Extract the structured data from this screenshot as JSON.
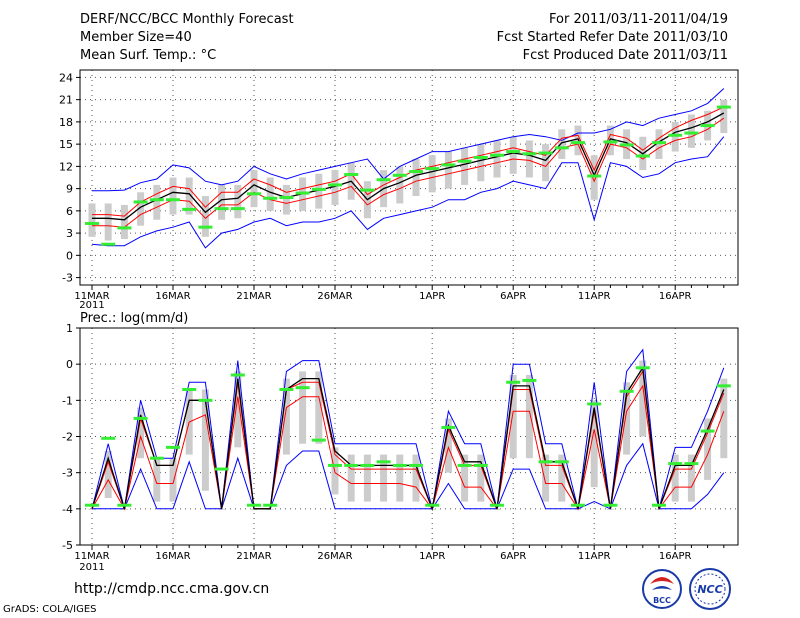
{
  "header": {
    "title": "DERF/NCC/BCC Monthly Forecast",
    "member_size": "Member Size=40",
    "variable": "Mean Surf. Temp.: °C",
    "period": "For 2011/03/11-2011/04/19",
    "fcst_started": "Fcst Started Refer Date 2011/03/10",
    "fcst_produced": "Fcst Produced Date 2011/03/11"
  },
  "footer": {
    "url": "http://cmdp.ncc.cma.gov.cn",
    "grads": "GrADS: COLA/IGES"
  },
  "logos": {
    "bcc": "BCC",
    "ncc": "NCC"
  },
  "colors": {
    "ens_max_min": "#0000ff",
    "ens_mean": "#000000",
    "ens_band": "#ff0000",
    "member_spread": "#cccccc",
    "observed": "#33ee33",
    "grid": "#555555"
  },
  "chart_data": [
    {
      "type": "line",
      "title": "Mean Surf. Temp.: °C",
      "xlabel": "",
      "ylabel": "°C",
      "ylim": [
        -4,
        25
      ],
      "yticks": [
        -3,
        0,
        3,
        6,
        9,
        12,
        15,
        18,
        21,
        24
      ],
      "grid": true,
      "x_tick_labels": [
        "11MAR",
        "16MAR",
        "21MAR",
        "26MAR",
        "1APR",
        "6APR",
        "11APR",
        "16APR"
      ],
      "x_tick_days": [
        1,
        6,
        11,
        16,
        22,
        27,
        32,
        37
      ],
      "x_year_label": "2011",
      "days": [
        1,
        2,
        3,
        4,
        5,
        6,
        7,
        8,
        9,
        10,
        11,
        12,
        13,
        14,
        15,
        16,
        17,
        18,
        19,
        20,
        21,
        22,
        23,
        24,
        25,
        26,
        27,
        28,
        29,
        30,
        31,
        32,
        33,
        34,
        35,
        36,
        37,
        38,
        39,
        40
      ],
      "series": [
        {
          "name": "ensemble max",
          "values": [
            8.7,
            8.7,
            8.8,
            9.8,
            10.3,
            12.2,
            11.8,
            10,
            9.5,
            10,
            12,
            11,
            10.3,
            11,
            11.5,
            12,
            12.5,
            13,
            10.3,
            12,
            13,
            14,
            14,
            14.5,
            15,
            15.5,
            16,
            16.3,
            16,
            15.5,
            16.5,
            16.5,
            17,
            18,
            17.5,
            18.5,
            19,
            19.5,
            20.5,
            22.5
          ]
        },
        {
          "name": "upper",
          "values": [
            5.5,
            5.5,
            5.3,
            7.2,
            8.3,
            9.3,
            9,
            6.5,
            8.5,
            8.5,
            10.3,
            9.5,
            8.5,
            9,
            9.5,
            10,
            11,
            8.2,
            9.5,
            10.5,
            11.5,
            12,
            12.5,
            13,
            13.5,
            14,
            14.5,
            14,
            13.5,
            15.8,
            16.2,
            11.5,
            16.3,
            15.8,
            14.2,
            15.8,
            17.2,
            18.2,
            19,
            20
          ]
        },
        {
          "name": "ensemble mean",
          "values": [
            5,
            5,
            4.8,
            6.5,
            7.5,
            8.5,
            8.3,
            5.8,
            7.5,
            7.7,
            9.5,
            8.5,
            7.8,
            8.3,
            8.8,
            9.3,
            10,
            7.5,
            9,
            9.8,
            10.8,
            11.3,
            11.8,
            12.3,
            12.8,
            13.3,
            13.8,
            13.5,
            12.8,
            15.2,
            15.7,
            10.8,
            15.7,
            15.2,
            13.7,
            15.3,
            16.6,
            17.2,
            18,
            19.2
          ]
        },
        {
          "name": "lower",
          "values": [
            4,
            4,
            3.8,
            5.5,
            6.5,
            7.5,
            7.3,
            5,
            6.8,
            6.8,
            8.5,
            7.5,
            7,
            7.5,
            8,
            8.5,
            9.3,
            6.8,
            8.2,
            9,
            10,
            10.5,
            11,
            11.5,
            12,
            12.5,
            13,
            12.8,
            12,
            14.5,
            15,
            10,
            15,
            14.5,
            13,
            14.5,
            15.5,
            16,
            17,
            18.5
          ]
        },
        {
          "name": "ensemble min",
          "values": [
            1.5,
            1.3,
            1.3,
            2.5,
            3.3,
            3.8,
            4.5,
            1,
            3,
            3.5,
            4.5,
            5,
            4,
            4.5,
            4.5,
            5,
            6,
            3.5,
            5,
            5.5,
            6,
            6.5,
            7.5,
            7.5,
            8.5,
            9,
            10,
            9.5,
            9,
            12.5,
            12.5,
            4.8,
            12.5,
            12,
            10.5,
            11,
            12.5,
            13,
            13.3,
            16
          ]
        },
        {
          "name": "member spread low",
          "values": [
            2.5,
            2,
            2.2,
            4,
            4.8,
            5.5,
            5.5,
            2.5,
            4.8,
            5,
            6.5,
            6,
            5.5,
            6,
            6.3,
            6.8,
            7.5,
            5,
            6.5,
            7,
            8,
            8.5,
            9,
            9.5,
            10,
            10.5,
            11,
            10.5,
            10,
            13,
            13.5,
            7.5,
            13.5,
            13,
            11.5,
            13,
            14,
            14.5,
            15.5,
            16.5
          ]
        },
        {
          "name": "member spread high",
          "values": [
            7,
            7,
            6.8,
            8.5,
            9.5,
            10.5,
            10.5,
            8,
            9.5,
            9.5,
            11.5,
            10.5,
            9.5,
            10.5,
            11,
            11.5,
            12.5,
            10,
            11.5,
            12,
            13,
            13.5,
            14,
            14.5,
            15,
            15.5,
            16,
            15.5,
            15,
            17,
            17.5,
            13.5,
            17.5,
            17,
            16,
            17,
            18,
            19,
            19.5,
            21
          ]
        },
        {
          "name": "observed",
          "values": [
            4.3,
            1.5,
            3.7,
            7.2,
            7.5,
            7.5,
            6.2,
            3.8,
            6.3,
            6.3,
            8.3,
            7.7,
            7.8,
            8.4,
            8.9,
            9.5,
            10.9,
            8.8,
            10.2,
            10.8,
            11.3,
            11.7,
            12.2,
            12.7,
            13.2,
            13.5,
            14,
            13.7,
            13.8,
            14.5,
            15.2,
            10.7,
            15.3,
            14.9,
            13.4,
            15.2,
            16.2,
            16.5,
            17.5,
            20
          ]
        }
      ]
    },
    {
      "type": "line",
      "title": "Prec.: log(mm/d)",
      "xlabel": "",
      "ylabel": "log(mm/d)",
      "ylim": [
        -5,
        1
      ],
      "yticks": [
        -5,
        -4,
        -3,
        -2,
        -1,
        0,
        1
      ],
      "grid": true,
      "x_tick_labels": [
        "11MAR",
        "16MAR",
        "21MAR",
        "26MAR",
        "1APR",
        "6APR",
        "11APR",
        "16APR"
      ],
      "x_tick_days": [
        1,
        6,
        11,
        16,
        22,
        27,
        32,
        37
      ],
      "x_year_label": "2011",
      "days": [
        1,
        2,
        3,
        4,
        5,
        6,
        7,
        8,
        9,
        10,
        11,
        12,
        13,
        14,
        15,
        16,
        17,
        18,
        19,
        20,
        21,
        22,
        23,
        24,
        25,
        26,
        27,
        28,
        29,
        30,
        31,
        32,
        33,
        34,
        35,
        36,
        37,
        38,
        39,
        40
      ],
      "series": [
        {
          "name": "ensemble max",
          "values": [
            -4,
            -2.2,
            -4,
            -1,
            -2.6,
            -2.6,
            -0.5,
            -0.5,
            -4,
            0.1,
            -4,
            -4,
            -0.2,
            0.1,
            0.1,
            -2.2,
            -2.2,
            -2.2,
            -2.2,
            -2.2,
            -2.2,
            -4,
            -1.3,
            -2.2,
            -2.2,
            -4,
            0,
            0,
            -2.2,
            -2.2,
            -4,
            -0.5,
            -4,
            -0.2,
            0.4,
            -4,
            -2.3,
            -2.3,
            -1.3,
            -0.1
          ]
        },
        {
          "name": "ensemble mean",
          "values": [
            -4,
            -2.6,
            -4,
            -1.4,
            -2.8,
            -2.8,
            -1,
            -1,
            -4,
            -0.4,
            -4,
            -4,
            -0.7,
            -0.4,
            -0.4,
            -2.4,
            -2.8,
            -2.8,
            -2.8,
            -2.8,
            -2.8,
            -4,
            -1.7,
            -2.7,
            -2.7,
            -4,
            -0.6,
            -0.6,
            -2.7,
            -2.7,
            -4,
            -1.2,
            -4,
            -0.8,
            -0.1,
            -4,
            -2.8,
            -2.8,
            -1.8,
            -0.7
          ]
        },
        {
          "name": "upper",
          "values": [
            -4,
            -2.7,
            -4,
            -1.5,
            -2.8,
            -2.8,
            -1,
            -1,
            -4,
            -0.5,
            -4,
            -4,
            -0.7,
            -0.5,
            -0.5,
            -2.5,
            -2.9,
            -2.9,
            -2.9,
            -2.9,
            -2.9,
            -4,
            -1.8,
            -2.8,
            -2.8,
            -4,
            -0.7,
            -0.7,
            -2.8,
            -2.8,
            -4,
            -1.3,
            -4,
            -0.9,
            -0.2,
            -4,
            -2.9,
            -2.9,
            -1.9,
            -0.8
          ]
        },
        {
          "name": "lower",
          "values": [
            -4,
            -3.2,
            -4,
            -2,
            -3.3,
            -3.3,
            -1.6,
            -1.4,
            -4,
            -0.9,
            -4,
            -4,
            -1.2,
            -0.9,
            -0.9,
            -3,
            -3.3,
            -3.3,
            -3.3,
            -3.3,
            -3.4,
            -4,
            -2.3,
            -3.4,
            -3.4,
            -4,
            -1.3,
            -1.3,
            -3.3,
            -3.3,
            -4,
            -1.8,
            -4,
            -1.3,
            -0.6,
            -4,
            -3.4,
            -3.4,
            -2.5,
            -1.3
          ]
        },
        {
          "name": "ensemble min",
          "values": [
            -4,
            -4,
            -4,
            -2.9,
            -4,
            -4,
            -2.7,
            -4,
            -4,
            -2.6,
            -4,
            -4,
            -2.8,
            -2.4,
            -2.4,
            -4,
            -4,
            -4,
            -4,
            -4,
            -4,
            -4,
            -3.3,
            -4,
            -4,
            -4,
            -2.9,
            -2.9,
            -4,
            -4,
            -4,
            -3.8,
            -4,
            -2.8,
            -2.2,
            -4,
            -4,
            -4,
            -3.6,
            -3
          ]
        },
        {
          "name": "member spread low",
          "values": [
            -4,
            -3.7,
            -4,
            -2.6,
            -3.8,
            -3.8,
            -2.5,
            -3.5,
            -4,
            -2.3,
            -4,
            -4,
            -2.5,
            -2.2,
            -2.2,
            -3.6,
            -3.8,
            -3.8,
            -3.8,
            -3.8,
            -3.8,
            -4,
            -3,
            -3.8,
            -3.8,
            -4,
            -2.6,
            -2.6,
            -3.8,
            -3.8,
            -4,
            -3.4,
            -4,
            -2.5,
            -2,
            -4,
            -3.8,
            -3.8,
            -3.2,
            -2.6
          ]
        },
        {
          "name": "member spread high",
          "values": [
            -4,
            -2.4,
            -4,
            -1.2,
            -2.6,
            -2.6,
            -0.7,
            -0.7,
            -4,
            -0.2,
            -4,
            -4,
            -0.4,
            -0.2,
            -0.2,
            -2.3,
            -2.5,
            -2.5,
            -2.5,
            -2.5,
            -2.5,
            -4,
            -1.5,
            -2.5,
            -2.5,
            -4,
            -0.3,
            -0.3,
            -2.5,
            -2.5,
            -4,
            -1,
            -4,
            -0.5,
            0.1,
            -4,
            -2.5,
            -2.5,
            -1.5,
            -0.4
          ]
        },
        {
          "name": "observed",
          "values": [
            -3.9,
            -2.05,
            -3.9,
            -1.5,
            -2.6,
            -2.3,
            -0.7,
            -1,
            -2.9,
            -0.3,
            -3.9,
            -3.9,
            -0.7,
            -0.65,
            -2.1,
            -2.8,
            -2.8,
            -2.8,
            -2.7,
            -2.8,
            -2.8,
            -3.9,
            -1.75,
            -2.8,
            -2.8,
            -3.9,
            -0.5,
            -0.45,
            -2.7,
            -2.7,
            -3.9,
            -1.1,
            -3.9,
            -0.75,
            -0.1,
            -3.9,
            -2.75,
            -2.75,
            -1.85,
            -0.6
          ]
        }
      ]
    }
  ]
}
